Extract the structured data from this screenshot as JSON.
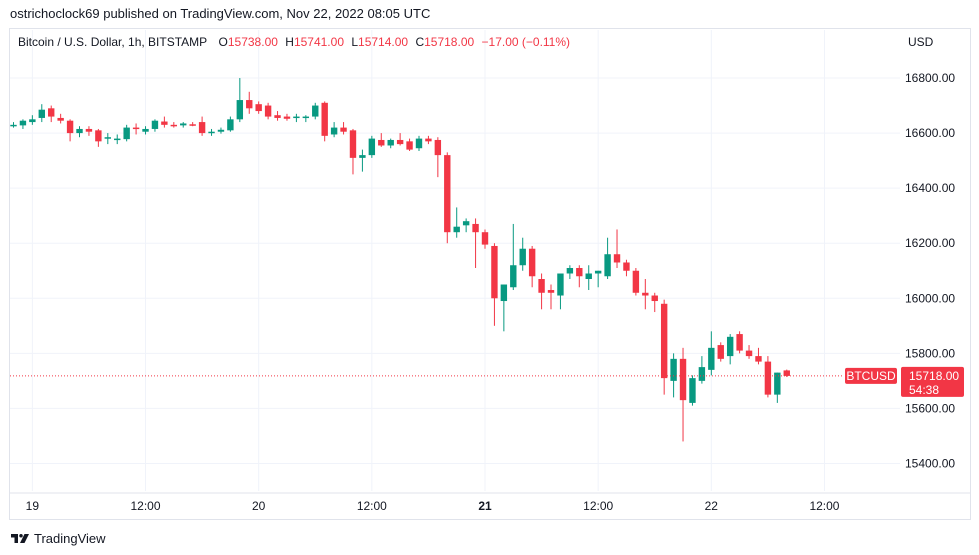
{
  "header": {
    "published_by": "ostrichoclock69 published on TradingView.com, Nov 22, 2022 08:05 UTC"
  },
  "legend": {
    "symbol": "Bitcoin / U.S. Dollar, 1h, BITSTAMP",
    "o_label": "O",
    "o_value": "15738.00",
    "h_label": "H",
    "h_value": "15741.00",
    "l_label": "L",
    "l_value": "15714.00",
    "c_label": "C",
    "c_value": "15718.00",
    "change": "−17.00 (−0.11%)"
  },
  "currency": "USD",
  "price_tag": {
    "symbol": "BTCUSD",
    "price": "15718.00",
    "countdown": "54:38"
  },
  "colors": {
    "up": "#089981",
    "down": "#f23645",
    "grid": "#f0f3fa",
    "text": "#131722",
    "price_line": "#f23645"
  },
  "footer": {
    "brand": "TradingView"
  },
  "chart_data": {
    "type": "candlestick",
    "title": "Bitcoin / U.S. Dollar, 1h, BITSTAMP",
    "interval": "1h",
    "ylim": [
      15300,
      16880
    ],
    "y_ticks": [
      15400,
      15600,
      15800,
      16000,
      16200,
      16400,
      16600,
      16800
    ],
    "y_tick_labels": [
      "15400.00",
      "15600.00",
      "15800.00",
      "16000.00",
      "16200.00",
      "16400.00",
      "16600.00",
      "16800.00"
    ],
    "x_tick_labels": [
      {
        "label": "19",
        "bar": 2,
        "bold": false
      },
      {
        "label": "12:00",
        "bar": 14,
        "bold": false
      },
      {
        "label": "20",
        "bar": 26,
        "bold": false
      },
      {
        "label": "12:00",
        "bar": 38,
        "bold": false
      },
      {
        "label": "21",
        "bar": 50,
        "bold": true
      },
      {
        "label": "12:00",
        "bar": 62,
        "bold": false
      },
      {
        "label": "22",
        "bar": 74,
        "bold": false
      },
      {
        "label": "12:00",
        "bar": 86,
        "bold": false
      }
    ],
    "last_price": 15718,
    "candles": [
      {
        "o": 16630,
        "h": 16640,
        "l": 16620,
        "c": 16630
      },
      {
        "o": 16628,
        "h": 16650,
        "l": 16615,
        "c": 16645
      },
      {
        "o": 16640,
        "h": 16665,
        "l": 16630,
        "c": 16650
      },
      {
        "o": 16655,
        "h": 16705,
        "l": 16640,
        "c": 16685
      },
      {
        "o": 16690,
        "h": 16700,
        "l": 16640,
        "c": 16660
      },
      {
        "o": 16655,
        "h": 16670,
        "l": 16635,
        "c": 16645
      },
      {
        "o": 16645,
        "h": 16650,
        "l": 16570,
        "c": 16600
      },
      {
        "o": 16600,
        "h": 16625,
        "l": 16585,
        "c": 16615
      },
      {
        "o": 16615,
        "h": 16625,
        "l": 16590,
        "c": 16605
      },
      {
        "o": 16610,
        "h": 16615,
        "l": 16550,
        "c": 16570
      },
      {
        "o": 16580,
        "h": 16600,
        "l": 16560,
        "c": 16585
      },
      {
        "o": 16575,
        "h": 16595,
        "l": 16560,
        "c": 16580
      },
      {
        "o": 16578,
        "h": 16630,
        "l": 16570,
        "c": 16620
      },
      {
        "o": 16620,
        "h": 16635,
        "l": 16595,
        "c": 16615
      },
      {
        "o": 16605,
        "h": 16625,
        "l": 16595,
        "c": 16615
      },
      {
        "o": 16615,
        "h": 16650,
        "l": 16605,
        "c": 16645
      },
      {
        "o": 16642,
        "h": 16660,
        "l": 16620,
        "c": 16630
      },
      {
        "o": 16630,
        "h": 16640,
        "l": 16620,
        "c": 16628
      },
      {
        "o": 16628,
        "h": 16640,
        "l": 16620,
        "c": 16635
      },
      {
        "o": 16632,
        "h": 16640,
        "l": 16625,
        "c": 16630
      },
      {
        "o": 16640,
        "h": 16660,
        "l": 16590,
        "c": 16600
      },
      {
        "o": 16600,
        "h": 16615,
        "l": 16590,
        "c": 16605
      },
      {
        "o": 16605,
        "h": 16620,
        "l": 16598,
        "c": 16612
      },
      {
        "o": 16610,
        "h": 16660,
        "l": 16605,
        "c": 16650
      },
      {
        "o": 16650,
        "h": 16800,
        "l": 16640,
        "c": 16720
      },
      {
        "o": 16720,
        "h": 16750,
        "l": 16670,
        "c": 16690
      },
      {
        "o": 16705,
        "h": 16715,
        "l": 16670,
        "c": 16680
      },
      {
        "o": 16700,
        "h": 16710,
        "l": 16650,
        "c": 16660
      },
      {
        "o": 16665,
        "h": 16680,
        "l": 16645,
        "c": 16655
      },
      {
        "o": 16660,
        "h": 16670,
        "l": 16645,
        "c": 16652
      },
      {
        "o": 16655,
        "h": 16670,
        "l": 16640,
        "c": 16660
      },
      {
        "o": 16655,
        "h": 16665,
        "l": 16640,
        "c": 16660
      },
      {
        "o": 16660,
        "h": 16710,
        "l": 16650,
        "c": 16700
      },
      {
        "o": 16710,
        "h": 16715,
        "l": 16570,
        "c": 16590
      },
      {
        "o": 16595,
        "h": 16640,
        "l": 16585,
        "c": 16620
      },
      {
        "o": 16620,
        "h": 16640,
        "l": 16595,
        "c": 16605
      },
      {
        "o": 16610,
        "h": 16615,
        "l": 16450,
        "c": 16510
      },
      {
        "o": 16510,
        "h": 16540,
        "l": 16460,
        "c": 16520
      },
      {
        "o": 16520,
        "h": 16590,
        "l": 16510,
        "c": 16580
      },
      {
        "o": 16575,
        "h": 16600,
        "l": 16550,
        "c": 16555
      },
      {
        "o": 16555,
        "h": 16580,
        "l": 16545,
        "c": 16575
      },
      {
        "o": 16575,
        "h": 16600,
        "l": 16555,
        "c": 16560
      },
      {
        "o": 16570,
        "h": 16580,
        "l": 16535,
        "c": 16540
      },
      {
        "o": 16545,
        "h": 16590,
        "l": 16535,
        "c": 16580
      },
      {
        "o": 16580,
        "h": 16590,
        "l": 16560,
        "c": 16570
      },
      {
        "o": 16575,
        "h": 16585,
        "l": 16440,
        "c": 16520
      },
      {
        "o": 16520,
        "h": 16530,
        "l": 16200,
        "c": 16240
      },
      {
        "o": 16240,
        "h": 16330,
        "l": 16220,
        "c": 16260
      },
      {
        "o": 16265,
        "h": 16290,
        "l": 16240,
        "c": 16280
      },
      {
        "o": 16270,
        "h": 16290,
        "l": 16110,
        "c": 16240
      },
      {
        "o": 16240,
        "h": 16250,
        "l": 16180,
        "c": 16195
      },
      {
        "o": 16190,
        "h": 16200,
        "l": 15900,
        "c": 16000
      },
      {
        "o": 15990,
        "h": 16050,
        "l": 15880,
        "c": 16050
      },
      {
        "o": 16040,
        "h": 16270,
        "l": 16030,
        "c": 16120
      },
      {
        "o": 16120,
        "h": 16220,
        "l": 16100,
        "c": 16180
      },
      {
        "o": 16180,
        "h": 16190,
        "l": 16040,
        "c": 16080
      },
      {
        "o": 16070,
        "h": 16090,
        "l": 15960,
        "c": 16020
      },
      {
        "o": 16030,
        "h": 16050,
        "l": 15960,
        "c": 16020
      },
      {
        "o": 16010,
        "h": 16090,
        "l": 15960,
        "c": 16090
      },
      {
        "o": 16090,
        "h": 16120,
        "l": 16070,
        "c": 16110
      },
      {
        "o": 16110,
        "h": 16120,
        "l": 16040,
        "c": 16080
      },
      {
        "o": 16070,
        "h": 16120,
        "l": 16030,
        "c": 16090
      },
      {
        "o": 16090,
        "h": 16100,
        "l": 16040,
        "c": 16100
      },
      {
        "o": 16080,
        "h": 16220,
        "l": 16070,
        "c": 16160
      },
      {
        "o": 16160,
        "h": 16250,
        "l": 16110,
        "c": 16130
      },
      {
        "o": 16130,
        "h": 16140,
        "l": 16080,
        "c": 16100
      },
      {
        "o": 16100,
        "h": 16110,
        "l": 16010,
        "c": 16020
      },
      {
        "o": 16020,
        "h": 16070,
        "l": 15960,
        "c": 16010
      },
      {
        "o": 16010,
        "h": 16020,
        "l": 15950,
        "c": 15990
      },
      {
        "o": 15980,
        "h": 15995,
        "l": 15650,
        "c": 15710
      },
      {
        "o": 15700,
        "h": 15800,
        "l": 15640,
        "c": 15780
      },
      {
        "o": 15780,
        "h": 15820,
        "l": 15480,
        "c": 15630
      },
      {
        "o": 15620,
        "h": 15720,
        "l": 15610,
        "c": 15710
      },
      {
        "o": 15700,
        "h": 15790,
        "l": 15690,
        "c": 15750
      },
      {
        "o": 15740,
        "h": 15880,
        "l": 15720,
        "c": 15820
      },
      {
        "o": 15830,
        "h": 15840,
        "l": 15770,
        "c": 15780
      },
      {
        "o": 15790,
        "h": 15870,
        "l": 15760,
        "c": 15860
      },
      {
        "o": 15870,
        "h": 15880,
        "l": 15800,
        "c": 15810
      },
      {
        "o": 15810,
        "h": 15830,
        "l": 15780,
        "c": 15790
      },
      {
        "o": 15790,
        "h": 15820,
        "l": 15760,
        "c": 15770
      },
      {
        "o": 15770,
        "h": 15790,
        "l": 15640,
        "c": 15650
      },
      {
        "o": 15650,
        "h": 15730,
        "l": 15620,
        "c": 15730
      },
      {
        "o": 15738,
        "h": 15741,
        "l": 15714,
        "c": 15718
      }
    ]
  }
}
